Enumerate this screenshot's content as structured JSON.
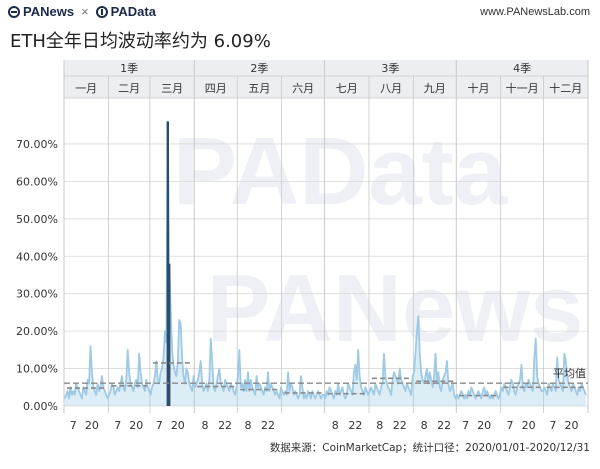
{
  "header": {
    "brand_left": "PANews",
    "brand_sep": "×",
    "brand_right": "PAData",
    "site": "www.PANewsLab.com"
  },
  "title": "ETH全年日均波动率约为 6.09%",
  "source": "数据来源：CoinMarketCap；统计口径：2020/01/01-2020/12/31",
  "watermarks": [
    "PAData",
    "PANews"
  ],
  "colors": {
    "bar": "#9ecae6",
    "peak": "#2b4d6e",
    "avg_line": "#8a8a8a",
    "grid": "#d9d9d9",
    "header_bg": "#eceef1"
  },
  "chart_data": {
    "type": "area",
    "title": "ETH全年日均波动率约为 6.09%",
    "ylim": [
      0,
      78
    ],
    "yticks": [
      0,
      10,
      20,
      30,
      40,
      50,
      60,
      70
    ],
    "ytick_labels": [
      "0.00%",
      "10.00%",
      "20.00%",
      "30.00%",
      "40.00%",
      "50.00%",
      "60.00%",
      "70.00%"
    ],
    "quarters": [
      "1季",
      "2季",
      "3季",
      "4季"
    ],
    "months": [
      "一月",
      "二月",
      "三月",
      "四月",
      "五月",
      "六月",
      "七月",
      "八月",
      "九月",
      "十月",
      "十一月",
      "十二月"
    ],
    "month_days": [
      31,
      29,
      31,
      30,
      31,
      30,
      31,
      31,
      30,
      31,
      30,
      31
    ],
    "month_ticks": [
      [
        "7",
        "20"
      ],
      [
        "7",
        "20"
      ],
      [
        "7",
        "20"
      ],
      [
        "8",
        "22"
      ],
      [
        "8",
        "22"
      ],
      [],
      [
        "8",
        "22"
      ],
      [
        "8",
        "22"
      ],
      [
        "8",
        "22"
      ],
      [
        "7",
        "20"
      ],
      [
        "7",
        "20"
      ],
      [
        "7",
        "20"
      ]
    ],
    "month_avgs": [
      4.8,
      5.4,
      11.5,
      5.2,
      4.4,
      3.5,
      3.3,
      7.4,
      6.6,
      2.8,
      5.0,
      5.0
    ],
    "overall_avg": 6.09,
    "avg_label": "平均值",
    "series": [
      {
        "values": [
          2,
          3,
          4,
          2,
          5,
          3,
          4,
          3,
          6,
          5,
          4,
          3,
          2,
          5,
          4,
          3,
          7,
          6,
          16,
          9,
          5,
          4,
          3,
          6,
          4,
          5,
          8,
          5,
          4,
          3,
          2,
          3,
          4,
          6,
          5,
          3,
          4,
          5,
          4,
          6,
          8,
          5,
          4,
          7,
          15,
          9,
          6,
          5,
          4,
          6,
          7,
          5,
          14,
          9,
          6,
          5,
          4,
          7,
          5,
          4,
          3,
          5,
          6,
          8,
          12,
          7,
          6,
          9,
          10,
          13,
          20,
          17,
          76,
          38,
          26,
          15,
          11,
          9,
          8,
          12,
          23,
          22,
          13,
          8,
          6,
          10,
          9,
          6,
          5,
          4,
          8,
          5,
          6,
          7,
          9,
          12,
          6,
          4,
          5,
          6,
          4,
          7,
          18,
          12,
          5,
          4,
          6,
          8,
          10,
          6,
          5,
          4,
          7,
          6,
          5,
          4,
          6,
          5,
          4,
          3,
          5,
          8,
          15,
          5,
          6,
          4,
          7,
          4,
          9,
          4,
          7,
          5,
          4,
          3,
          8,
          5,
          6,
          5,
          4,
          3,
          5,
          4,
          9,
          4,
          6,
          5,
          4,
          3,
          4,
          3,
          2,
          5,
          4,
          3,
          4,
          3,
          9,
          4,
          6,
          5,
          3,
          4,
          3,
          2,
          3,
          8,
          5,
          2,
          3,
          2,
          4,
          3,
          2,
          4,
          3,
          2,
          3,
          4,
          3,
          2,
          3,
          3,
          2,
          4,
          3,
          5,
          4,
          3,
          2,
          4,
          3,
          6,
          3,
          4,
          5,
          3,
          2,
          3,
          6,
          5,
          4,
          3,
          9,
          11,
          7,
          15,
          8,
          5,
          4,
          3,
          5,
          4,
          3,
          4,
          5,
          4,
          3,
          6,
          5,
          4,
          3,
          5,
          6,
          14,
          8,
          6,
          5,
          4,
          3,
          7,
          9,
          8,
          7,
          6,
          10,
          7,
          6,
          5,
          4,
          6,
          5,
          4,
          3,
          8,
          9,
          14,
          20,
          24,
          14,
          9,
          7,
          6,
          8,
          10,
          6,
          9,
          7,
          5,
          8,
          14,
          6,
          9,
          5,
          4,
          7,
          8,
          9,
          12,
          6,
          4,
          5,
          6,
          3,
          2,
          3,
          2,
          3,
          4,
          3,
          2,
          3,
          2,
          4,
          3,
          5,
          4,
          3,
          2,
          3,
          4,
          3,
          2,
          4,
          5,
          3,
          4,
          3,
          2,
          3,
          2,
          3,
          4,
          3,
          2,
          3,
          5,
          4,
          6,
          5,
          4,
          3,
          5,
          7,
          6,
          4,
          3,
          5,
          6,
          7,
          11,
          5,
          4,
          6,
          5,
          7,
          6,
          5,
          4,
          13,
          18,
          8,
          6,
          5,
          4,
          4,
          5,
          4,
          3,
          6,
          5,
          4,
          6,
          5,
          4,
          13,
          7,
          6,
          5,
          4,
          14,
          12,
          8,
          6,
          5,
          4,
          6,
          5,
          4,
          3,
          5,
          4,
          6,
          5,
          4,
          3
        ]
      }
    ]
  }
}
